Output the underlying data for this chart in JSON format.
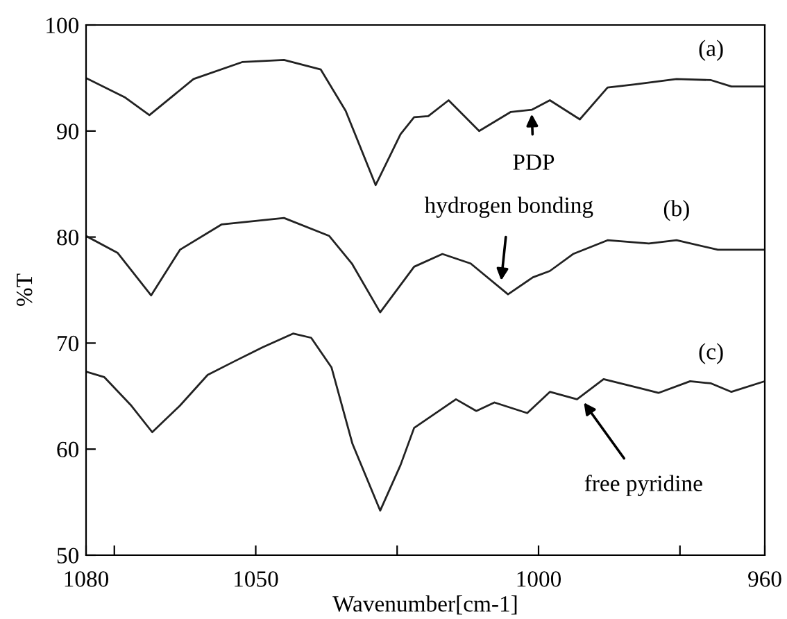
{
  "chart_data": {
    "type": "line",
    "xlabel": "Wavenumber[cm-1]",
    "ylabel": "%T",
    "xlim": [
      1080,
      960
    ],
    "ylim": [
      50,
      100
    ],
    "xticks": [
      1080,
      {
        "value": 1075,
        "label": null
      },
      1050,
      {
        "value": 1025,
        "label": null
      },
      1000,
      {
        "value": 975,
        "label": null
      },
      960
    ],
    "yticks": [
      50,
      60,
      70,
      80,
      90,
      100
    ],
    "grid": false,
    "legend": false,
    "marker": "none",
    "line_style": "solid",
    "series": [
      {
        "name": "(a)",
        "color": "#222222",
        "x": [
          1080,
          1073.2,
          1068.8,
          1061,
          1052.4,
          1045,
          1038.5,
          1034.1,
          1028.8,
          1024.4,
          1022,
          1019.5,
          1015.9,
          1010.5,
          1004.9,
          1001.2,
          998,
          992.7,
          987.8,
          983,
          975.6,
          969.5,
          965.9,
          960
        ],
        "values": [
          95.0,
          93.2,
          91.5,
          94.9,
          96.5,
          96.7,
          95.8,
          91.9,
          84.9,
          89.7,
          91.3,
          91.4,
          92.9,
          90.0,
          91.8,
          92.0,
          92.9,
          91.1,
          94.1,
          94.4,
          94.9,
          94.8,
          94.2,
          94.2
        ]
      },
      {
        "name": "(b)",
        "color": "#222222",
        "x": [
          1080,
          1074.4,
          1068.5,
          1063.4,
          1056,
          1045,
          1037,
          1033,
          1028,
          1022,
          1017,
          1012,
          1005.4,
          1001,
          998,
          993.9,
          987.8,
          980.5,
          975.6,
          968.3,
          960
        ],
        "values": [
          80.1,
          78.5,
          74.5,
          78.8,
          81.2,
          81.8,
          80.1,
          77.5,
          72.9,
          77.2,
          78.4,
          77.5,
          74.6,
          76.2,
          76.8,
          78.4,
          79.7,
          79.4,
          79.7,
          78.8,
          78.8
        ]
      },
      {
        "name": "(c)",
        "color": "#222222",
        "x": [
          1080,
          1076.8,
          1072,
          1068.3,
          1063.4,
          1058.5,
          1053.7,
          1048.8,
          1043.4,
          1040.2,
          1036.6,
          1032.9,
          1028,
          1024.4,
          1022,
          1014.6,
          1011,
          1007.8,
          1002,
          998,
          993.2,
          988.5,
          981.7,
          978.8,
          973.2,
          969.5,
          965.9,
          960
        ],
        "values": [
          67.3,
          66.8,
          64.1,
          61.6,
          64.1,
          67.0,
          68.3,
          69.6,
          70.9,
          70.5,
          67.7,
          60.5,
          54.2,
          58.5,
          62.0,
          64.7,
          63.6,
          64.4,
          63.4,
          65.4,
          64.7,
          66.6,
          65.7,
          65.3,
          66.4,
          66.2,
          65.4,
          66.4
        ]
      }
    ],
    "annotations": [
      {
        "text": "PDP",
        "x": 1001.2,
        "y": 91.6
      },
      {
        "text": "hydrogen bonding",
        "x": 1006.6,
        "y": 75.9
      },
      {
        "text": "free pyridine",
        "x": 992,
        "y": 64.4
      }
    ]
  }
}
